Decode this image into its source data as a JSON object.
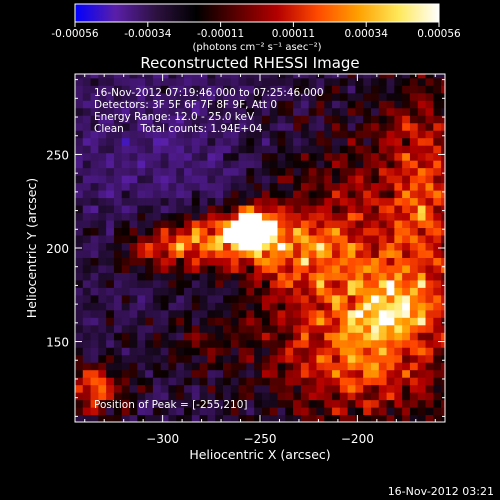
{
  "chart_data": {
    "type": "heatmap",
    "title": "Reconstructed RHESSI Image",
    "xlabel": "Heliocentric X (arcsec)",
    "ylabel": "Heliocentric Y (arcsec)",
    "xlim": [
      -345,
      -155
    ],
    "ylim": [
      107,
      293
    ],
    "xticks": [
      -300,
      -250,
      -200
    ],
    "yticks": [
      150,
      200,
      250
    ],
    "colorbar": {
      "label": "(photons cm⁻² s⁻¹ asec⁻²)",
      "range": [
        -0.00056,
        0.00056
      ],
      "ticks": [
        "-0.00056",
        "-0.00034",
        "-0.00011",
        "0.00011",
        "0.00034",
        "0.00056"
      ],
      "colormap": [
        "#0000ff",
        "#5a1fa8",
        "#2d1140",
        "#000000",
        "#5a0000",
        "#b30000",
        "#ff4a00",
        "#ffa000",
        "#ffe85a",
        "#ffffff"
      ]
    },
    "annotations": [
      "16-Nov-2012 07:19:46.000 to 07:25:46.000",
      "Detectors: 3F 5F 6F 7F 8F 9F, Att 0",
      "Energy Range: 12.0 - 25.0 keV",
      "Clean     Total counts: 1.94E+04"
    ],
    "peak_label": "Position of Peak = [-255,210]",
    "peak": [
      -255,
      210
    ],
    "grid": false
  },
  "footer": {
    "timestamp": "16-Nov-2012 03:21"
  }
}
